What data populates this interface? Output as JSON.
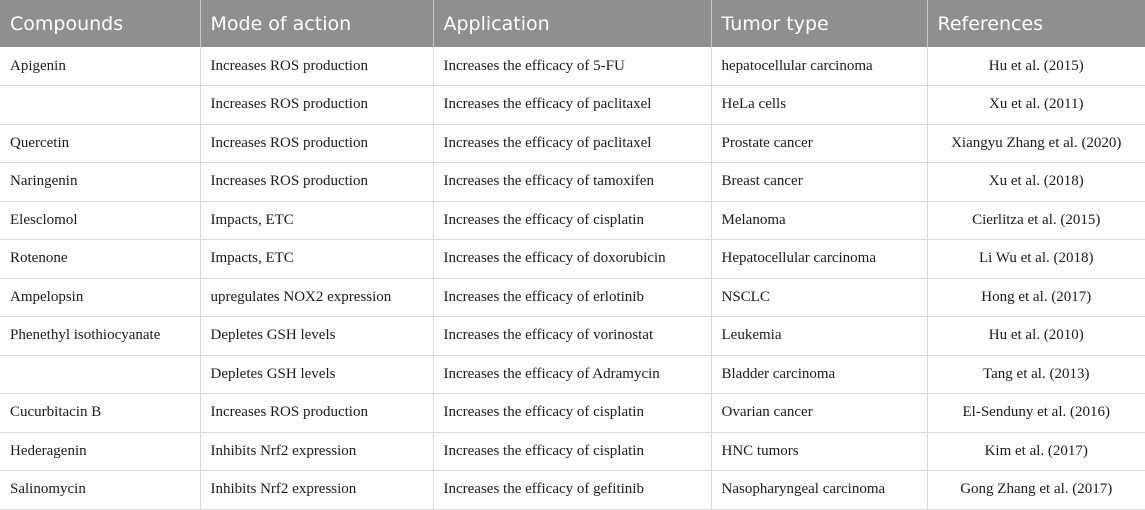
{
  "table": {
    "headers": [
      "Compounds",
      "Mode of action",
      "Application",
      "Tumor type",
      "References"
    ],
    "rows": [
      {
        "compound": "Apigenin",
        "mode": "Increases ROS production",
        "application": "Increases the efficacy of 5-FU",
        "tumor": "hepatocellular carcinoma",
        "reference": "Hu et al. (2015)"
      },
      {
        "compound": "",
        "mode": "Increases ROS production",
        "application": "Increases the efficacy of paclitaxel",
        "tumor": "HeLa cells",
        "reference": "Xu et al. (2011)"
      },
      {
        "compound": "Quercetin",
        "mode": "Increases ROS production",
        "application": "Increases the efficacy of paclitaxel",
        "tumor": "Prostate cancer",
        "reference": "Xiangyu Zhang et al. (2020)"
      },
      {
        "compound": "Naringenin",
        "mode": "Increases ROS production",
        "application": "Increases the efficacy of tamoxifen",
        "tumor": "Breast cancer",
        "reference": "Xu et al. (2018)"
      },
      {
        "compound": "Elesclomol",
        "mode": "Impacts, ETC",
        "application": "Increases the efficacy of cisplatin",
        "tumor": "Melanoma",
        "reference": "Cierlitza et al. (2015)"
      },
      {
        "compound": "Rotenone",
        "mode": "Impacts, ETC",
        "application": "Increases the efficacy of doxorubicin",
        "tumor": "Hepatocellular carcinoma",
        "reference": "Li Wu et al. (2018)"
      },
      {
        "compound": "Ampelopsin",
        "mode": "upregulates NOX2 expression",
        "application": "Increases the efficacy of erlotinib",
        "tumor": "NSCLC",
        "reference": "Hong et al. (2017)"
      },
      {
        "compound": "Phenethyl isothiocyanate",
        "mode": "Depletes GSH levels",
        "application": "Increases the efficacy of vorinostat",
        "tumor": "Leukemia",
        "reference": "Hu et al. (2010)"
      },
      {
        "compound": "",
        "mode": "Depletes GSH levels",
        "application": "Increases the efficacy of Adramycin",
        "tumor": "Bladder carcinoma",
        "reference": "Tang et al. (2013)"
      },
      {
        "compound": "Cucurbitacin B",
        "mode": "Increases ROS production",
        "application": "Increases the efficacy of cisplatin",
        "tumor": "Ovarian cancer",
        "reference": "El-Senduny et al. (2016)"
      },
      {
        "compound": "Hederagenin",
        "mode": "Inhibits Nrf2 expression",
        "application": "Increases the efficacy of cisplatin",
        "tumor": "HNC tumors",
        "reference": "Kim et al. (2017)"
      },
      {
        "compound": "Salinomycin",
        "mode": "Inhibits Nrf2 expression",
        "application": "Increases the efficacy of gefitinib",
        "tumor": "Nasopharyngeal carcinoma",
        "reference": "Gong Zhang et al. (2017)"
      }
    ]
  }
}
